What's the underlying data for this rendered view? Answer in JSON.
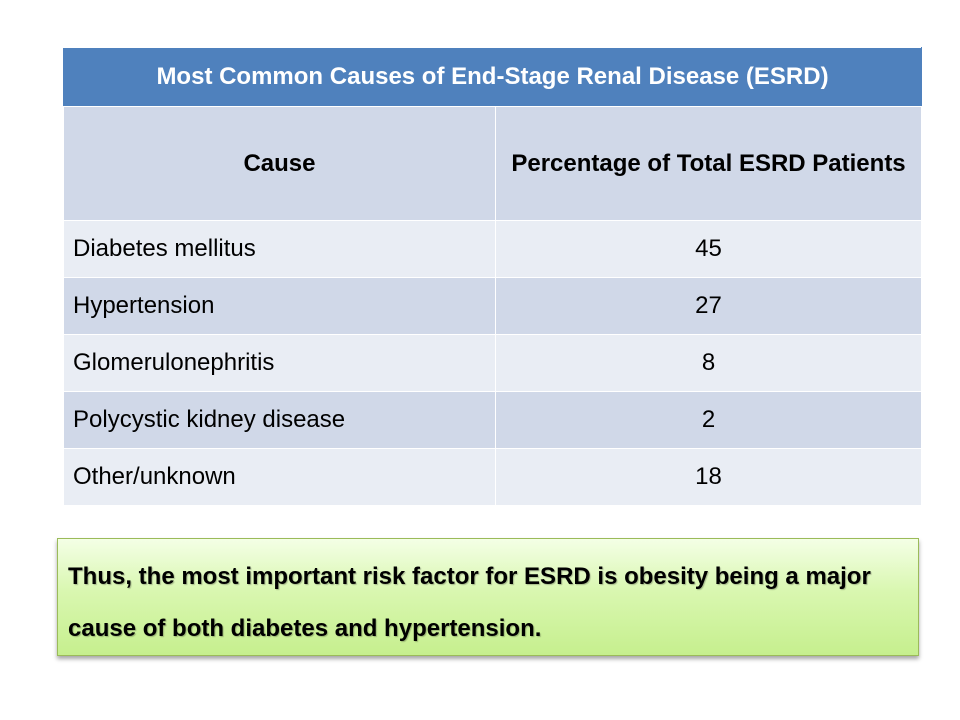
{
  "table": {
    "title": "Most Common Causes of End-Stage Renal Disease (ESRD)",
    "headers": {
      "cause": "Cause",
      "percentage": "Percentage of Total ESRD Patients"
    },
    "rows": [
      {
        "cause": "Diabetes mellitus",
        "value": "45"
      },
      {
        "cause": "Hypertension",
        "value": "27"
      },
      {
        "cause": "Glomerulonephritis",
        "value": "8"
      },
      {
        "cause": "Polycystic kidney disease",
        "value": "2"
      },
      {
        "cause": "Other/unknown",
        "value": "18"
      }
    ]
  },
  "conclusion": {
    "text": "Thus, the most important risk factor for ESRD is obesity being a major cause of both diabetes and hypertension."
  },
  "colors": {
    "title_bg": "#4f81bd",
    "header_bg": "#d0d8e8",
    "row_light": "#e9edf4",
    "note_border": "#9bbb59"
  }
}
